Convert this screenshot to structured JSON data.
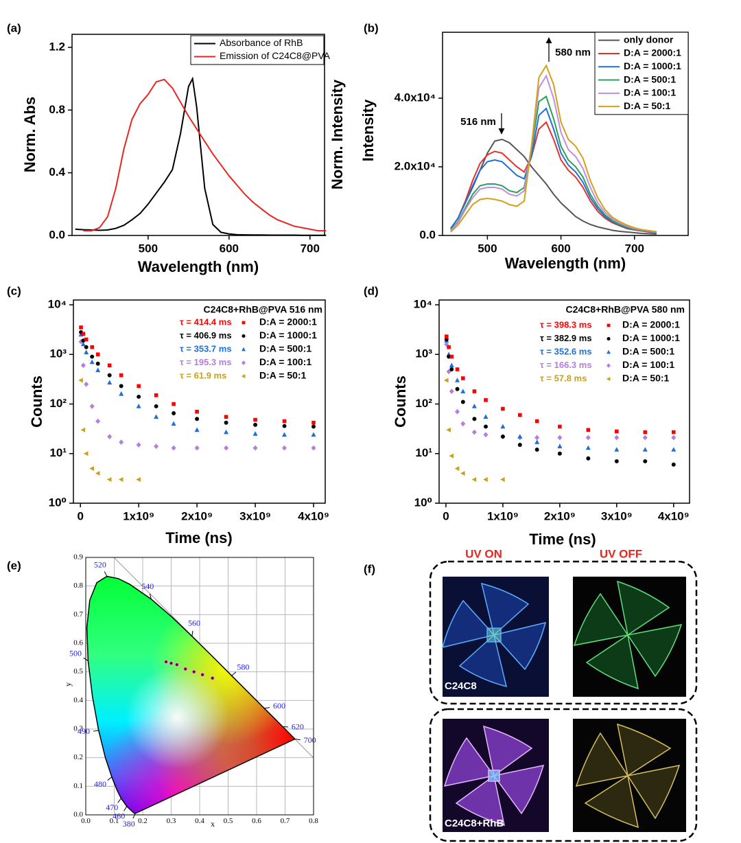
{
  "chart_data": [
    {
      "type": "line",
      "panel_label": "(a)",
      "xlabel": "Wavelength (nm)",
      "ylabel": "Norm. Abs",
      "y2label": "Norm. Intensity",
      "x": [
        410,
        420,
        430,
        440,
        450,
        460,
        470,
        480,
        490,
        500,
        510,
        520,
        530,
        540,
        550,
        555,
        560,
        570,
        580,
        590,
        600,
        610,
        620,
        630,
        640,
        650,
        660,
        670,
        680,
        690,
        700,
        710,
        720
      ],
      "series": [
        {
          "name": "Absorbance of RhB",
          "color": "#000000",
          "values": [
            0.04,
            0.037,
            0.035,
            0.033,
            0.035,
            0.045,
            0.065,
            0.1,
            0.14,
            0.2,
            0.27,
            0.34,
            0.42,
            0.65,
            0.95,
            1.0,
            0.82,
            0.3,
            0.07,
            0.02,
            0.01,
            0.005,
            0.004,
            0.003,
            0.003,
            0.002,
            0.002,
            0.002,
            0.002,
            0.001,
            0.001,
            0.001,
            0.001
          ]
        },
        {
          "name": "Emission of C24C8@PVA",
          "color": "#e8251f",
          "values": [
            null,
            0.03,
            0.03,
            0.05,
            0.12,
            0.3,
            0.55,
            0.74,
            0.84,
            0.9,
            0.98,
            0.995,
            0.94,
            0.85,
            0.76,
            0.72,
            0.68,
            0.6,
            0.52,
            0.45,
            0.38,
            0.32,
            0.26,
            0.21,
            0.17,
            0.13,
            0.1,
            0.08,
            0.06,
            0.05,
            0.04,
            0.03,
            0.03
          ]
        }
      ],
      "xlim": [
        406,
        718
      ],
      "xticks": [
        500,
        600,
        700
      ],
      "ylim": [
        0,
        1.283
      ],
      "yticks": [
        {
          "value": 0,
          "label": "0.0"
        },
        0.4,
        0.8,
        1.2
      ],
      "legend": "upper right"
    },
    {
      "type": "line",
      "panel_label": "(b)",
      "xlabel": "Wavelength (nm)",
      "ylabel": "Intensity",
      "x": [
        450,
        460,
        470,
        480,
        490,
        500,
        510,
        520,
        530,
        540,
        550,
        560,
        570,
        580,
        590,
        600,
        610,
        620,
        630,
        640,
        650,
        660,
        670,
        680,
        690,
        700,
        710,
        720,
        730
      ],
      "series": [
        {
          "name": "only donor",
          "color": "#555555",
          "values": [
            2000,
            5000,
            9500,
            14000,
            19000,
            24000,
            27500,
            28000,
            27000,
            25000,
            23000,
            20000,
            17500,
            15000,
            12000,
            9500,
            7500,
            5500,
            4200,
            3200,
            2500,
            2000,
            1500,
            1200,
            1000,
            800,
            600,
            500,
            400
          ]
        },
        {
          "name": "D:A = 2000:1",
          "color": "#e8302b",
          "values": [
            2000,
            5000,
            10000,
            16000,
            21000,
            23500,
            24500,
            24000,
            22000,
            20000,
            18500,
            23000,
            31000,
            33000,
            28000,
            22000,
            19000,
            17000,
            14000,
            10000,
            7000,
            5000,
            3700,
            2800,
            2000,
            1600,
            1300,
            1000,
            800
          ]
        },
        {
          "name": "D:A = 1000:1",
          "color": "#1f6fd6",
          "values": [
            2000,
            5000,
            9500,
            14500,
            19000,
            21500,
            22000,
            21500,
            19500,
            17500,
            16500,
            23000,
            35000,
            37000,
            31000,
            24000,
            20500,
            18500,
            15500,
            11000,
            7800,
            5500,
            4000,
            3000,
            2200,
            1700,
            1400,
            1100,
            900
          ]
        },
        {
          "name": "D:A = 500:1",
          "color": "#2ca05a",
          "values": [
            1500,
            4000,
            8000,
            12000,
            14500,
            15000,
            15000,
            14500,
            13000,
            12500,
            14000,
            25000,
            39000,
            40500,
            34000,
            26000,
            22000,
            20000,
            17000,
            12000,
            8500,
            6000,
            4300,
            3200,
            2400,
            1800,
            1500,
            1200,
            1000
          ]
        },
        {
          "name": "D:A = 100:1",
          "color": "#c08ee0",
          "values": [
            1400,
            3700,
            7500,
            11000,
            13500,
            14000,
            14000,
            13500,
            12000,
            11500,
            13000,
            26000,
            43000,
            46500,
            40000,
            30000,
            25000,
            23000,
            19500,
            14000,
            9500,
            6700,
            4800,
            3600,
            2700,
            2000,
            1600,
            1300,
            1000
          ]
        },
        {
          "name": "D:A = 50:1",
          "color": "#d4a017",
          "values": [
            1000,
            3000,
            6000,
            9000,
            10500,
            10800,
            10500,
            10000,
            9000,
            8500,
            10000,
            26000,
            46000,
            49500,
            44000,
            33000,
            28000,
            26000,
            22500,
            16000,
            11000,
            7500,
            5300,
            4000,
            3000,
            2200,
            1700,
            1400,
            1100
          ]
        }
      ],
      "annotations": [
        "516 nm",
        "580 nm"
      ],
      "xlim": [
        439,
        773
      ],
      "xticks": [
        500,
        600,
        700
      ],
      "ylim": [
        0,
        59200
      ],
      "yticks": [
        {
          "value": 0,
          "label": "0.0"
        },
        {
          "value": 20000,
          "label": "2.0x10⁴"
        },
        {
          "value": 40000,
          "label": "4.0x10⁴"
        }
      ],
      "legend": "upper right"
    },
    {
      "type": "scatter",
      "panel_label": "(c)",
      "xlabel": "Time (ns)",
      "ylabel": "Counts",
      "legend_title": "C24C8+RhB@PVA 516 nm",
      "log_y": true,
      "x": [
        10000000.0,
        50000000.0,
        100000000.0,
        200000000.0,
        300000000.0,
        500000000.0,
        700000000.0,
        1000000000.0,
        1300000000.0,
        1600000000.0,
        2000000000.0,
        2500000000.0,
        3000000000.0,
        3500000000.0,
        4000000000.0
      ],
      "series": [
        {
          "name": "D:A = 2000:1",
          "tau_label": "τ = 414.4 ms",
          "color": "#ff0000",
          "marker": "square",
          "values": [
            3500,
            2600,
            2000,
            1400,
            1000,
            600,
            380,
            230,
            150,
            100,
            70,
            55,
            48,
            45,
            42
          ]
        },
        {
          "name": "D:A = 1000:1",
          "tau_label": "τ = 406.9 ms",
          "color": "#000000",
          "marker": "circle",
          "values": [
            2800,
            1900,
            1400,
            900,
            650,
            380,
            230,
            140,
            90,
            65,
            50,
            42,
            38,
            36,
            35
          ]
        },
        {
          "name": "D:A = 500:1",
          "tau_label": "τ = 353.7 ms",
          "color": "#1e6fd9",
          "marker": "triangle",
          "values": [
            2500,
            1600,
            1100,
            700,
            480,
            270,
            160,
            90,
            55,
            40,
            30,
            27,
            25,
            24,
            24
          ]
        },
        {
          "name": "D:A = 100:1",
          "tau_label": "τ = 195.3 ms",
          "color": "#b57edc",
          "marker": "diamond",
          "values": [
            1800,
            600,
            250,
            90,
            45,
            22,
            17,
            15,
            14,
            13,
            13,
            13,
            13,
            13,
            13
          ]
        },
        {
          "name": "D:A = 50:1",
          "tau_label": "τ = 61.9 ms",
          "color": "#c9a01a",
          "marker": "triangle-left",
          "values": [
            300,
            30,
            10,
            5,
            4,
            3,
            3,
            3,
            null,
            null,
            null,
            null,
            null,
            null,
            null
          ]
        }
      ],
      "xlim": [
        -120000000.0,
        4200000000.0
      ],
      "xticks": [
        0,
        {
          "value": 1000000000.0,
          "label": "1x10⁹"
        },
        {
          "value": 2000000000.0,
          "label": "2x10⁹"
        },
        {
          "value": 3000000000.0,
          "label": "3x10⁹"
        },
        {
          "value": 4000000000.0,
          "label": "4x10⁹"
        }
      ],
      "ylim": [
        1,
        12500
      ],
      "yticks": [
        {
          "value": 1,
          "label": "10⁰"
        },
        {
          "value": 10,
          "label": "10¹"
        },
        {
          "value": 100,
          "label": "10²"
        },
        {
          "value": 1000,
          "label": "10³"
        },
        {
          "value": 10000,
          "label": "10⁴"
        }
      ],
      "legend": "upper right"
    },
    {
      "type": "scatter",
      "panel_label": "(d)",
      "xlabel": "Time (ns)",
      "ylabel": "Counts",
      "legend_title": "C24C8+RhB@PVA 580 nm",
      "log_y": true,
      "x": [
        10000000.0,
        50000000.0,
        100000000.0,
        200000000.0,
        300000000.0,
        500000000.0,
        700000000.0,
        1000000000.0,
        1300000000.0,
        1600000000.0,
        2000000000.0,
        2500000000.0,
        3000000000.0,
        3500000000.0,
        4000000000.0
      ],
      "series": [
        {
          "name": "D:A = 2000:1",
          "tau_label": "τ = 398.3 ms",
          "color": "#ff0000",
          "marker": "square",
          "values": [
            2300,
            1400,
            900,
            500,
            330,
            180,
            120,
            80,
            60,
            45,
            35,
            30,
            28,
            27,
            27
          ]
        },
        {
          "name": "D:A = 1000:1",
          "tau_label": "τ = 382.9 ms",
          "color": "#000000",
          "marker": "circle",
          "values": [
            2000,
            900,
            500,
            200,
            110,
            50,
            35,
            22,
            15,
            12,
            10,
            8,
            7,
            7,
            6
          ]
        },
        {
          "name": "D:A = 500:1",
          "tau_label": "τ = 352.6 ms",
          "color": "#1e6fd9",
          "marker": "triangle",
          "values": [
            1900,
            1000,
            600,
            300,
            180,
            90,
            55,
            35,
            22,
            17,
            14,
            13,
            12,
            12,
            12
          ]
        },
        {
          "name": "D:A = 100:1",
          "tau_label": "τ = 166.3 ms",
          "color": "#b57edc",
          "marker": "diamond",
          "values": [
            1600,
            450,
            180,
            70,
            40,
            27,
            24,
            22,
            21,
            21,
            21,
            21,
            21,
            21,
            21
          ]
        },
        {
          "name": "D:A = 50:1",
          "tau_label": "τ = 57.8 ms",
          "color": "#c9a01a",
          "marker": "triangle-left",
          "values": [
            300,
            30,
            9,
            5,
            4,
            3,
            3,
            3,
            null,
            null,
            null,
            null,
            null,
            null,
            null
          ]
        }
      ],
      "xlim": [
        -120000000.0,
        4280000000.0
      ],
      "xticks": [
        0,
        {
          "value": 1000000000.0,
          "label": "1x10⁹"
        },
        {
          "value": 2000000000.0,
          "label": "2x10⁹"
        },
        {
          "value": 3000000000.0,
          "label": "3x10⁹"
        },
        {
          "value": 4000000000.0,
          "label": "4x10⁹"
        }
      ],
      "ylim": [
        1,
        12500
      ],
      "yticks": [
        {
          "value": 1,
          "label": "10⁰"
        },
        {
          "value": 10,
          "label": "10¹"
        },
        {
          "value": 100,
          "label": "10²"
        },
        {
          "value": 1000,
          "label": "10³"
        },
        {
          "value": 10000,
          "label": "10⁴"
        }
      ],
      "legend": "upper right"
    },
    {
      "type": "chromaticity",
      "panel_label": "(e)",
      "xlabel": "x",
      "ylabel": "y",
      "x": [
        0.282,
        0.3,
        0.32,
        0.35,
        0.38,
        0.41,
        0.445
      ],
      "values": [
        0.535,
        0.53,
        0.525,
        0.51,
        0.5,
        0.49,
        0.478
      ],
      "color": "#5b1030",
      "wavelength_labels": [
        380,
        460,
        470,
        480,
        490,
        500,
        520,
        540,
        560,
        580,
        600,
        620,
        700
      ],
      "xlim": [
        0,
        0.8
      ],
      "xticks": [
        {
          "value": 0,
          "label": "0.0"
        },
        0.1,
        0.2,
        0.3,
        0.4,
        0.5,
        0.6,
        0.7,
        0.8
      ],
      "ylim": [
        0,
        0.9
      ],
      "yticks": [
        {
          "value": 0,
          "label": "0.0"
        },
        0.1,
        0.2,
        0.3,
        0.4,
        0.5,
        0.6,
        0.7,
        0.8,
        0.9
      ],
      "grid": true
    },
    {
      "type": "photo",
      "panel_label": "(f)",
      "column_labels": [
        "UV ON",
        "UV OFF"
      ],
      "row_labels": [
        "C24C8",
        "C24C8+RhB"
      ]
    }
  ]
}
